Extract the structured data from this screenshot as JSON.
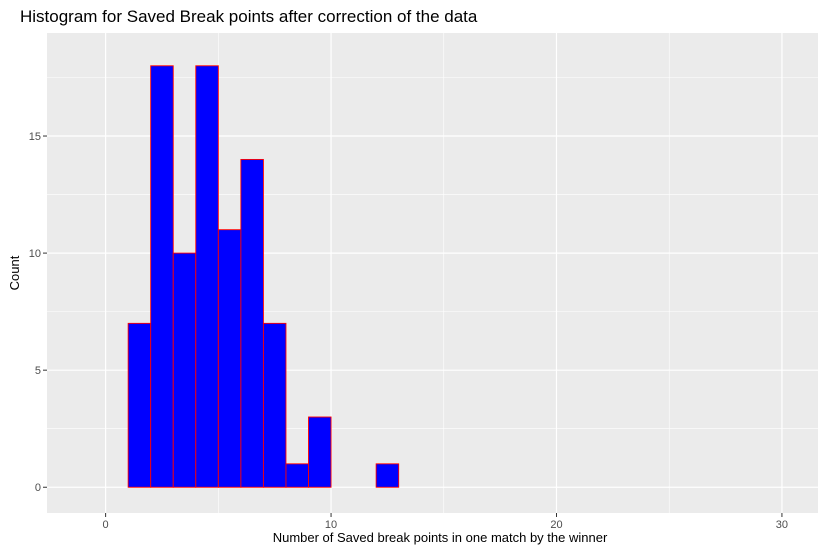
{
  "chart_data": {
    "type": "bar",
    "title": "Histogram for Saved Break points after correction of the data",
    "xlabel": "Number of Saved break points in one match by the winner",
    "ylabel": "Count",
    "xlim": [
      -2.6,
      31.6
    ],
    "ylim": [
      -1.1,
      19.4
    ],
    "x_ticks": [
      0,
      10,
      20,
      30
    ],
    "y_ticks": [
      0,
      5,
      10,
      15
    ],
    "grid": true,
    "legend": "none",
    "bin_width": 1,
    "bins": [
      {
        "from": -1,
        "to": 0,
        "count": 0
      },
      {
        "from": 0,
        "to": 1,
        "count": 0
      },
      {
        "from": 1,
        "to": 2,
        "count": 7
      },
      {
        "from": 2,
        "to": 3,
        "count": 18
      },
      {
        "from": 3,
        "to": 4,
        "count": 10
      },
      {
        "from": 4,
        "to": 5,
        "count": 18
      },
      {
        "from": 5,
        "to": 6,
        "count": 11
      },
      {
        "from": 6,
        "to": 7,
        "count": 14
      },
      {
        "from": 7,
        "to": 8,
        "count": 7
      },
      {
        "from": 8,
        "to": 9,
        "count": 1
      },
      {
        "from": 9,
        "to": 10,
        "count": 3
      },
      {
        "from": 10,
        "to": 11,
        "count": 0
      },
      {
        "from": 11,
        "to": 12,
        "count": 0
      },
      {
        "from": 12,
        "to": 13,
        "count": 1
      },
      {
        "from": 13,
        "to": 14,
        "count": 0
      },
      {
        "from": 14,
        "to": 15,
        "count": 0
      },
      {
        "from": 15,
        "to": 16,
        "count": 0
      },
      {
        "from": 16,
        "to": 17,
        "count": 0
      },
      {
        "from": 17,
        "to": 18,
        "count": 0
      },
      {
        "from": 18,
        "to": 19,
        "count": 0
      },
      {
        "from": 19,
        "to": 20,
        "count": 0
      },
      {
        "from": 20,
        "to": 21,
        "count": 0
      },
      {
        "from": 21,
        "to": 22,
        "count": 0
      },
      {
        "from": 22,
        "to": 23,
        "count": 0
      },
      {
        "from": 23,
        "to": 24,
        "count": 0
      },
      {
        "from": 24,
        "to": 25,
        "count": 0
      },
      {
        "from": 25,
        "to": 26,
        "count": 0
      },
      {
        "from": 26,
        "to": 27,
        "count": 0
      },
      {
        "from": 27,
        "to": 28,
        "count": 0
      },
      {
        "from": 28,
        "to": 29,
        "count": 0
      },
      {
        "from": 29,
        "to": 30,
        "count": 0
      }
    ],
    "colors": {
      "bar_fill": "#0000FF",
      "bar_outline": "#FF0000",
      "panel_background": "#EBEBEB",
      "grid": "#FFFFFF"
    }
  }
}
